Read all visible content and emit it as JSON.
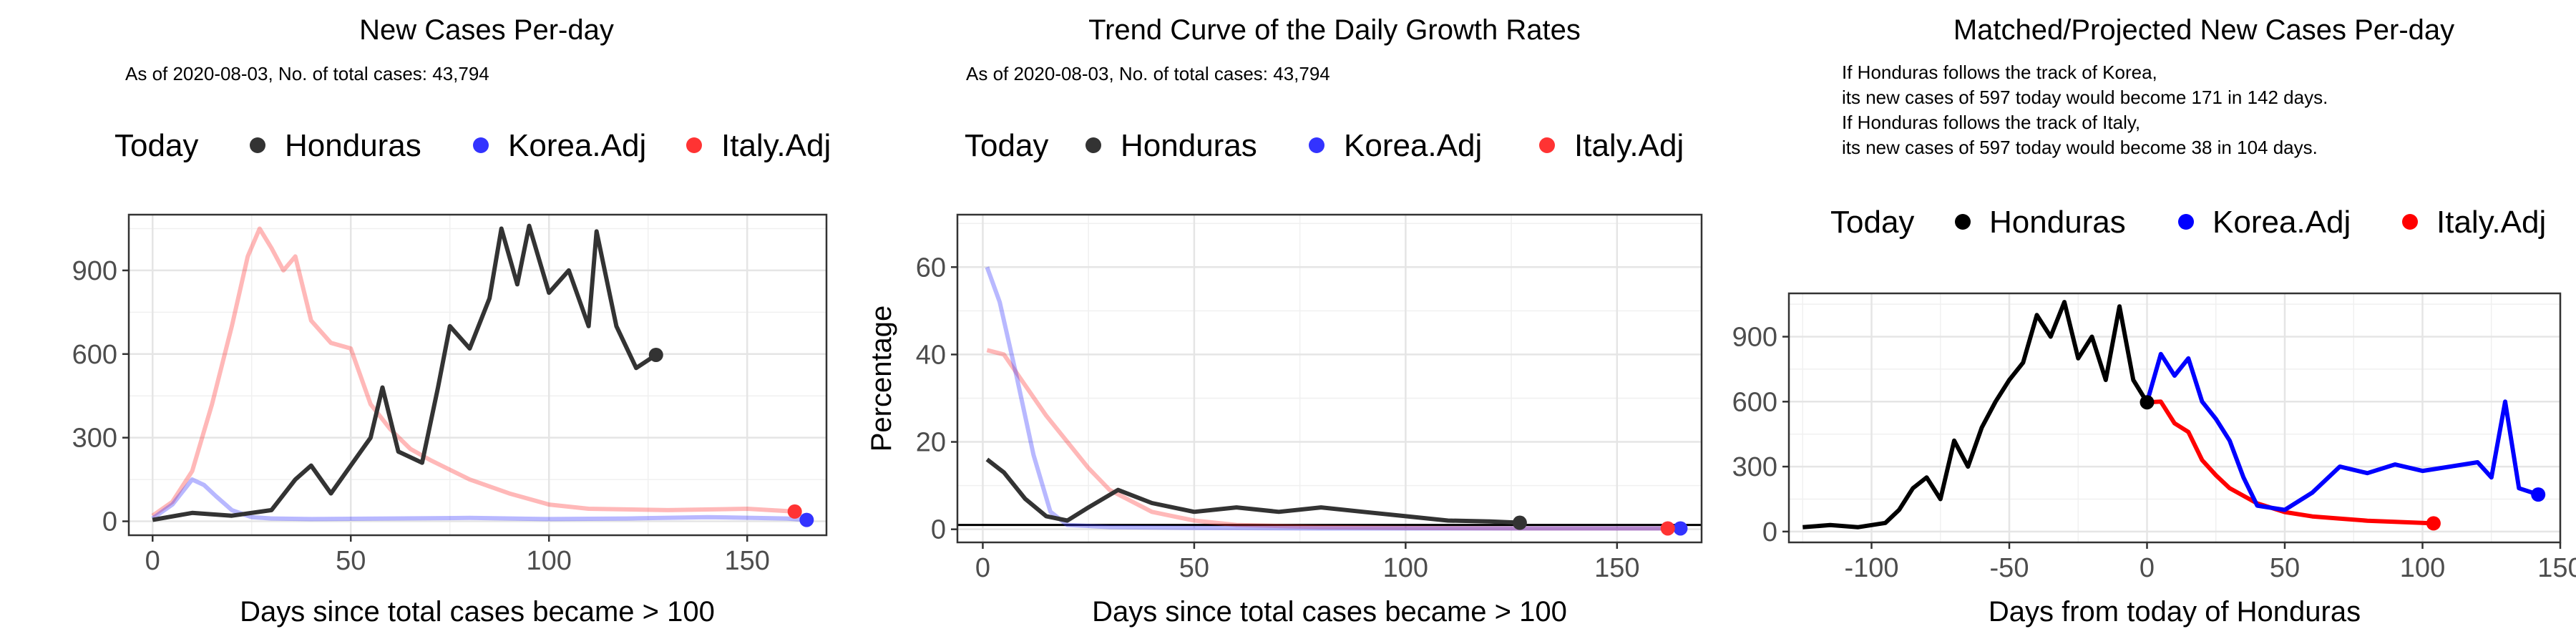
{
  "panels": [
    {
      "title": "New Cases Per-day",
      "subtitle_lines": [
        "As of 2020-08-03, No. of total cases: 43,794"
      ],
      "legend": {
        "title": "Today",
        "items": [
          {
            "label": "Honduras",
            "color": "#333333"
          },
          {
            "label": "Korea.Adj",
            "color": "#3333ff"
          },
          {
            "label": "Italy.Adj",
            "color": "#ff3333"
          }
        ]
      },
      "xlabel": "Days since total cases became > 100",
      "ylabel": "",
      "xticks": [
        0,
        50,
        100,
        150
      ],
      "yticks": [
        0,
        300,
        600,
        900
      ]
    },
    {
      "title": "Trend Curve of the Daily Growth Rates",
      "subtitle_lines": [
        "As of 2020-08-03, No. of total cases: 43,794"
      ],
      "legend": {
        "title": "Today",
        "items": [
          {
            "label": "Honduras",
            "color": "#333333"
          },
          {
            "label": "Korea.Adj",
            "color": "#3333ff"
          },
          {
            "label": "Italy.Adj",
            "color": "#ff3333"
          }
        ]
      },
      "xlabel": "Days since total cases became > 100",
      "ylabel": "Percentage",
      "xticks": [
        0,
        50,
        100,
        150
      ],
      "yticks": [
        0,
        20,
        40,
        60
      ]
    },
    {
      "title": "Matched/Projected New Cases Per-day",
      "subtitle_lines": [
        "If Honduras follows the track of Korea,",
        "its new cases of 597 today would become 171 in 142 days.",
        "If Honduras follows the track of Italy,",
        "its new cases of 597 today would become 38 in 104 days."
      ],
      "legend": {
        "title": "Today",
        "items": [
          {
            "label": "Honduras",
            "color": "#000000"
          },
          {
            "label": "Korea.Adj",
            "color": "#0000ff"
          },
          {
            "label": "Italy.Adj",
            "color": "#ff0000"
          }
        ]
      },
      "xlabel": "Days from today of Honduras",
      "ylabel": "",
      "xticks": [
        -100,
        -50,
        0,
        50,
        100,
        150
      ],
      "yticks": [
        0,
        300,
        600,
        900
      ]
    }
  ],
  "chart_data": [
    {
      "type": "line",
      "title": "New Cases Per-day",
      "xlabel": "Days since total cases became > 100",
      "xlim": [
        -6,
        170
      ],
      "ylim": [
        -50,
        1100
      ],
      "series": [
        {
          "name": "Honduras",
          "color": "#333333",
          "x": [
            0,
            10,
            20,
            30,
            36,
            40,
            45,
            50,
            55,
            58,
            62,
            68,
            72,
            75,
            80,
            85,
            88,
            92,
            95,
            100,
            105,
            110,
            112,
            117,
            122,
            127
          ],
          "y": [
            5,
            30,
            20,
            40,
            150,
            200,
            100,
            200,
            300,
            480,
            250,
            210,
            480,
            700,
            620,
            800,
            1050,
            850,
            1060,
            820,
            900,
            700,
            1040,
            700,
            550,
            597
          ]
        },
        {
          "name": "Korea.Adj",
          "color": "#3333ff",
          "x": [
            0,
            5,
            10,
            13,
            16,
            20,
            25,
            30,
            40,
            60,
            80,
            100,
            120,
            140,
            160,
            165
          ],
          "y": [
            10,
            60,
            150,
            130,
            90,
            40,
            15,
            10,
            8,
            10,
            12,
            8,
            10,
            15,
            10,
            5
          ]
        },
        {
          "name": "Italy.Adj",
          "color": "#ff3333",
          "x": [
            0,
            5,
            10,
            15,
            20,
            24,
            27,
            30,
            33,
            36,
            40,
            45,
            50,
            55,
            60,
            65,
            70,
            80,
            90,
            100,
            110,
            130,
            150,
            162
          ],
          "y": [
            20,
            70,
            180,
            420,
            700,
            950,
            1050,
            980,
            900,
            950,
            720,
            640,
            620,
            420,
            330,
            260,
            220,
            150,
            100,
            60,
            45,
            40,
            45,
            35
          ]
        }
      ]
    },
    {
      "type": "line",
      "title": "Trend Curve of the Daily Growth Rates",
      "xlabel": "Days since total cases became > 100",
      "ylabel": "Percentage",
      "xlim": [
        -6,
        170
      ],
      "ylim": [
        -3,
        72
      ],
      "series": [
        {
          "name": "Honduras",
          "color": "#333333",
          "x": [
            1,
            5,
            10,
            15,
            20,
            25,
            32,
            40,
            50,
            60,
            70,
            80,
            90,
            100,
            110,
            120,
            127
          ],
          "y": [
            16,
            13,
            7,
            3,
            2,
            5,
            9,
            6,
            4,
            5,
            4,
            5,
            4,
            3,
            2,
            1.8,
            1.5
          ]
        },
        {
          "name": "Korea.Adj",
          "color": "#3333ff",
          "x": [
            1,
            4,
            8,
            12,
            16,
            20,
            30,
            50,
            80,
            120,
            165
          ],
          "y": [
            60,
            52,
            35,
            17,
            4,
            1,
            0.5,
            0.3,
            0.2,
            0.2,
            0.2
          ]
        },
        {
          "name": "Italy.Adj",
          "color": "#ff3333",
          "x": [
            1,
            5,
            10,
            15,
            20,
            25,
            30,
            40,
            50,
            60,
            80,
            100,
            130,
            162
          ],
          "y": [
            41,
            40,
            33,
            26,
            20,
            14,
            9,
            4,
            2,
            1,
            0.5,
            0.3,
            0.2,
            0.2
          ]
        }
      ]
    },
    {
      "type": "line",
      "title": "Matched/Projected New Cases Per-day",
      "xlabel": "Days from today of Honduras",
      "xlim": [
        -130,
        150
      ],
      "ylim": [
        -50,
        1100
      ],
      "series": [
        {
          "name": "Honduras",
          "color": "#000000",
          "x": [
            -125,
            -115,
            -105,
            -95,
            -90,
            -85,
            -80,
            -75,
            -70,
            -65,
            -60,
            -55,
            -50,
            -45,
            -40,
            -35,
            -30,
            -25,
            -20,
            -15,
            -10,
            -5,
            0
          ],
          "y": [
            20,
            30,
            20,
            40,
            100,
            200,
            250,
            150,
            420,
            300,
            480,
            600,
            700,
            780,
            1000,
            900,
            1060,
            800,
            900,
            700,
            1040,
            700,
            597
          ]
        },
        {
          "name": "Korea.Adj",
          "color": "#0000ff",
          "x": [
            0,
            5,
            10,
            15,
            20,
            25,
            30,
            35,
            40,
            50,
            60,
            70,
            80,
            90,
            100,
            110,
            120,
            125,
            130,
            135,
            142
          ],
          "y": [
            597,
            820,
            720,
            800,
            600,
            520,
            420,
            250,
            120,
            100,
            180,
            300,
            270,
            310,
            280,
            300,
            320,
            250,
            600,
            200,
            171
          ]
        },
        {
          "name": "Italy.Adj",
          "color": "#ff0000",
          "x": [
            0,
            5,
            10,
            15,
            20,
            25,
            30,
            40,
            50,
            60,
            70,
            80,
            90,
            104
          ],
          "y": [
            597,
            600,
            500,
            460,
            330,
            260,
            200,
            130,
            90,
            70,
            60,
            50,
            45,
            38
          ]
        }
      ]
    }
  ]
}
